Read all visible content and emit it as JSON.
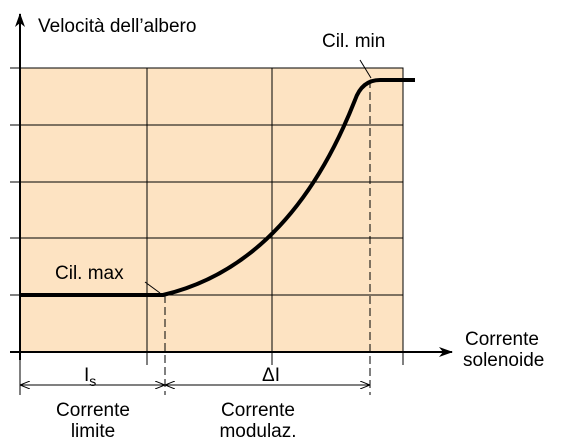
{
  "y_axis": {
    "label": "Velocità dell’albero"
  },
  "x_axis": {
    "label": [
      "Corrente",
      "solenoide"
    ]
  },
  "annotations": [
    {
      "label": "Cil. min"
    },
    {
      "label": "Cil. max"
    }
  ],
  "dimensions": [
    {
      "label": "I",
      "subscript": "s",
      "caption": [
        "Corrente",
        "limite"
      ]
    },
    {
      "label": "ΔI",
      "caption": [
        "Corrente",
        "modulaz."
      ]
    }
  ]
}
